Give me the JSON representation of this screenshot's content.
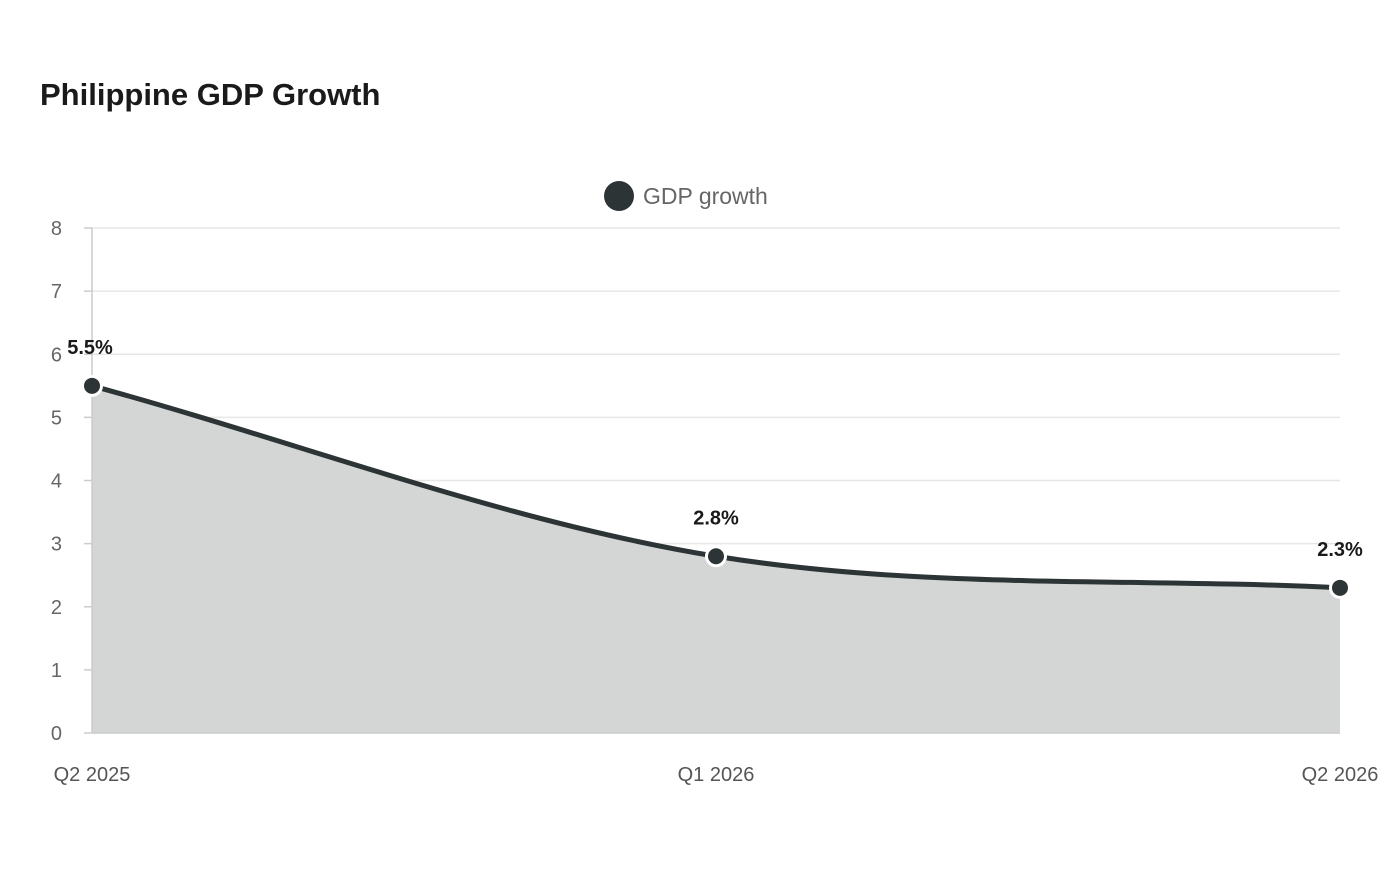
{
  "chart_data": {
    "type": "area",
    "title": "Philippine GDP Growth",
    "categories": [
      "Q2 2025",
      "Q1 2026",
      "Q2 2026"
    ],
    "series": [
      {
        "name": "GDP growth",
        "values": [
          5.5,
          2.8,
          2.3
        ],
        "labels": [
          "5.5%",
          "2.8%",
          "2.3%"
        ]
      }
    ],
    "ylim": [
      0,
      8
    ],
    "yticks": [
      0,
      1,
      2,
      3,
      4,
      5,
      6,
      7,
      8
    ],
    "grid": true,
    "legend": "top-center",
    "colors": {
      "line": "#2d3436",
      "fill": "#d4d6d5",
      "grid": "#e6e6e6",
      "axis": "#cccccc"
    }
  }
}
